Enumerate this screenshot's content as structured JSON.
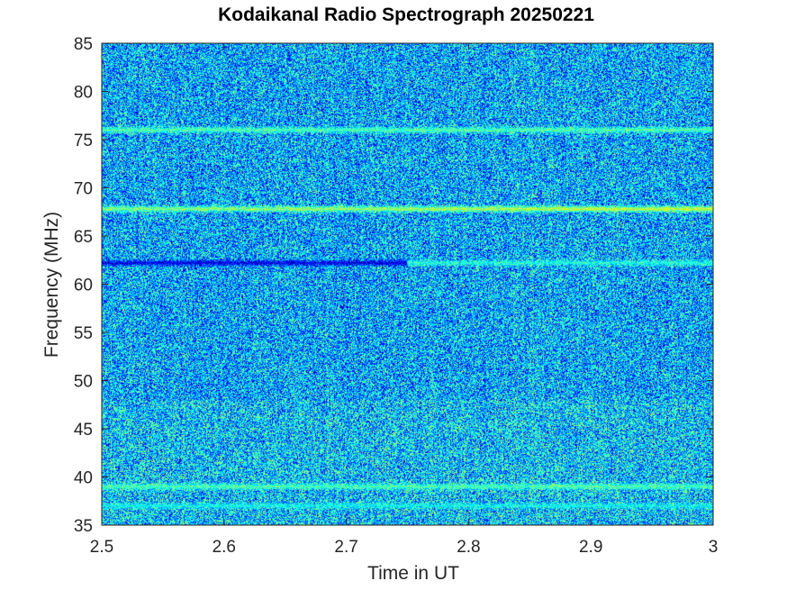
{
  "chart_data": {
    "type": "heatmap",
    "title": "Kodaikanal Radio Spectrograph  20250221",
    "xlabel": "Time in UT",
    "ylabel": "Frequency (MHz)",
    "xlim": [
      2.5,
      3.0
    ],
    "ylim": [
      35,
      85
    ],
    "x_ticks": [
      2.5,
      2.6,
      2.7,
      2.8,
      2.9,
      3.0
    ],
    "x_tick_labels": [
      "2.5",
      "2.6",
      "2.7",
      "2.8",
      "2.9",
      "3"
    ],
    "y_ticks": [
      35,
      40,
      45,
      50,
      55,
      60,
      65,
      70,
      75,
      80,
      85
    ],
    "y_tick_labels": [
      "35",
      "40",
      "45",
      "50",
      "55",
      "60",
      "65",
      "70",
      "75",
      "80",
      "85"
    ],
    "colormap": "jet",
    "background_intensity": 0.3,
    "noise_level": 0.22,
    "bands": [
      {
        "freq_mhz": 76.0,
        "intensity": 0.52,
        "t_start": 2.5,
        "t_end": 3.0,
        "description": "bright"
      },
      {
        "freq_mhz": 67.8,
        "intensity": 0.58,
        "t_start": 2.5,
        "t_end": 3.0,
        "description": "bright, strongest after 2.9"
      },
      {
        "freq_mhz": 62.2,
        "intensity": 0.02,
        "t_start": 2.5,
        "t_end": 2.75,
        "description": "dark"
      },
      {
        "freq_mhz": 62.2,
        "intensity": 0.45,
        "t_start": 2.75,
        "t_end": 3.0,
        "description": "bright"
      },
      {
        "freq_mhz": 39.0,
        "intensity": 0.5,
        "t_start": 2.5,
        "t_end": 3.0,
        "description": "bright"
      },
      {
        "freq_mhz": 37.0,
        "intensity": 0.4,
        "t_start": 2.5,
        "t_end": 3.0,
        "description": "moderate"
      }
    ],
    "grid": false,
    "legend": false
  }
}
